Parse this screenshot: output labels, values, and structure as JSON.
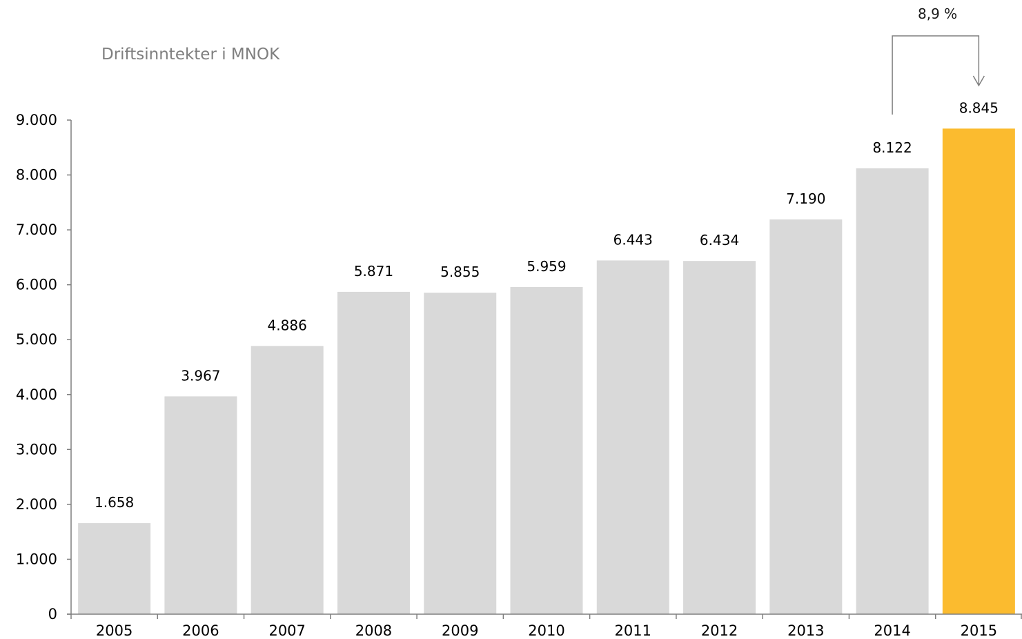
{
  "chart_data": {
    "type": "bar",
    "subtitle": "Driftsinntekter i MNOK",
    "categories": [
      "2005",
      "2006",
      "2007",
      "2008",
      "2009",
      "2010",
      "2011",
      "2012",
      "2013",
      "2014",
      "2015"
    ],
    "values": [
      1658,
      3967,
      4886,
      5871,
      5855,
      5959,
      6443,
      6434,
      7190,
      8122,
      8845
    ],
    "value_labels": [
      "1.658",
      "3.967",
      "4.886",
      "5.871",
      "5.855",
      "5.959",
      "6.443",
      "6.434",
      "7.190",
      "8.122",
      "8.845"
    ],
    "y_ticks": [
      0,
      1000,
      2000,
      3000,
      4000,
      5000,
      6000,
      7000,
      8000,
      9000
    ],
    "y_tick_labels": [
      "0",
      "1.000",
      "2.000",
      "3.000",
      "4.000",
      "5.000",
      "6.000",
      "7.000",
      "8.000",
      "9.000"
    ],
    "ylim": [
      0,
      9000
    ],
    "grid": false,
    "colors": {
      "bar": "#d9d9d9",
      "highlight_bar": "#fbbb2f",
      "axis": "#7f7f7f",
      "annotation_line": "#7f7f7f"
    },
    "highlight_category": "2015",
    "annotation": {
      "text": "8,9 %",
      "from": "2014",
      "to": "2015"
    }
  }
}
